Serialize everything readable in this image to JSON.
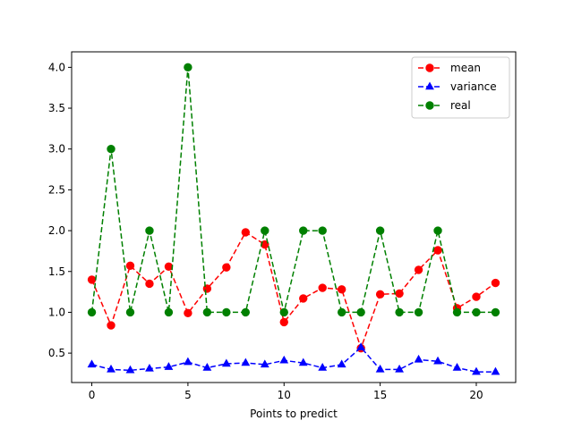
{
  "chart_data": {
    "type": "line",
    "title": "",
    "xlabel": "Points to predict",
    "ylabel": "",
    "xlim": [
      -1.05,
      22.05
    ],
    "ylim": [
      0.14,
      4.19
    ],
    "xticks": [
      0,
      5,
      10,
      15,
      20
    ],
    "yticks": [
      0.5,
      1.0,
      1.5,
      2.0,
      2.5,
      3.0,
      3.5,
      4.0
    ],
    "xtick_labels": [
      "0",
      "5",
      "10",
      "15",
      "20"
    ],
    "ytick_labels": [
      "0.5",
      "1.0",
      "1.5",
      "2.0",
      "2.5",
      "3.0",
      "3.5",
      "4.0"
    ],
    "grid": false,
    "legend": "top-right",
    "x": [
      0,
      1,
      2,
      3,
      4,
      5,
      6,
      7,
      8,
      9,
      10,
      11,
      12,
      13,
      14,
      15,
      16,
      17,
      18,
      19,
      20,
      21
    ],
    "series": [
      {
        "name": "mean",
        "color": "#ff0000",
        "marker": "circle",
        "linestyle": "dashed",
        "values": [
          1.4,
          0.84,
          1.57,
          1.35,
          1.56,
          0.99,
          1.29,
          1.55,
          1.98,
          1.83,
          0.88,
          1.17,
          1.3,
          1.28,
          0.56,
          1.22,
          1.23,
          1.52,
          1.76,
          1.05,
          1.19,
          1.36
        ]
      },
      {
        "name": "variance",
        "color": "#0000ff",
        "marker": "triangle",
        "linestyle": "dashed",
        "values": [
          0.36,
          0.3,
          0.29,
          0.31,
          0.33,
          0.39,
          0.32,
          0.37,
          0.38,
          0.36,
          0.41,
          0.38,
          0.32,
          0.36,
          0.57,
          0.3,
          0.3,
          0.42,
          0.4,
          0.32,
          0.27,
          0.27
        ]
      },
      {
        "name": "real",
        "color": "#008000",
        "marker": "circle",
        "linestyle": "dashed",
        "values": [
          1,
          3,
          1,
          2,
          1,
          4,
          1,
          1,
          1,
          2,
          1,
          2,
          2,
          1,
          1,
          2,
          1,
          1,
          2,
          1,
          1,
          1
        ]
      }
    ]
  }
}
